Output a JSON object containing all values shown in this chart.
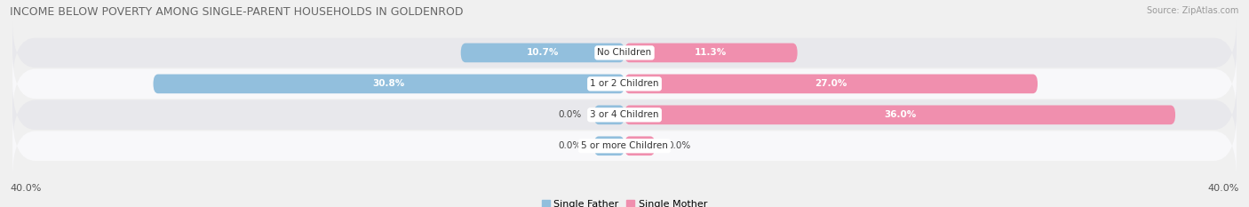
{
  "title": "INCOME BELOW POVERTY AMONG SINGLE-PARENT HOUSEHOLDS IN GOLDENROD",
  "source": "Source: ZipAtlas.com",
  "categories": [
    "No Children",
    "1 or 2 Children",
    "3 or 4 Children",
    "5 or more Children"
  ],
  "single_father": [
    10.7,
    30.8,
    0.0,
    0.0
  ],
  "single_mother": [
    11.3,
    27.0,
    36.0,
    0.0
  ],
  "color_father": "#92bfdd",
  "color_mother": "#f08fae",
  "max_val": 40.0,
  "bg_color": "#f0f0f0",
  "row_colors": [
    "#e8e8ec",
    "#f8f8fa"
  ],
  "title_fontsize": 9,
  "source_fontsize": 7,
  "label_fontsize": 8,
  "category_fontsize": 7.5,
  "value_fontsize": 7.5,
  "legend_labels": [
    "Single Father",
    "Single Mother"
  ],
  "min_bar_for_stub": 2.0
}
